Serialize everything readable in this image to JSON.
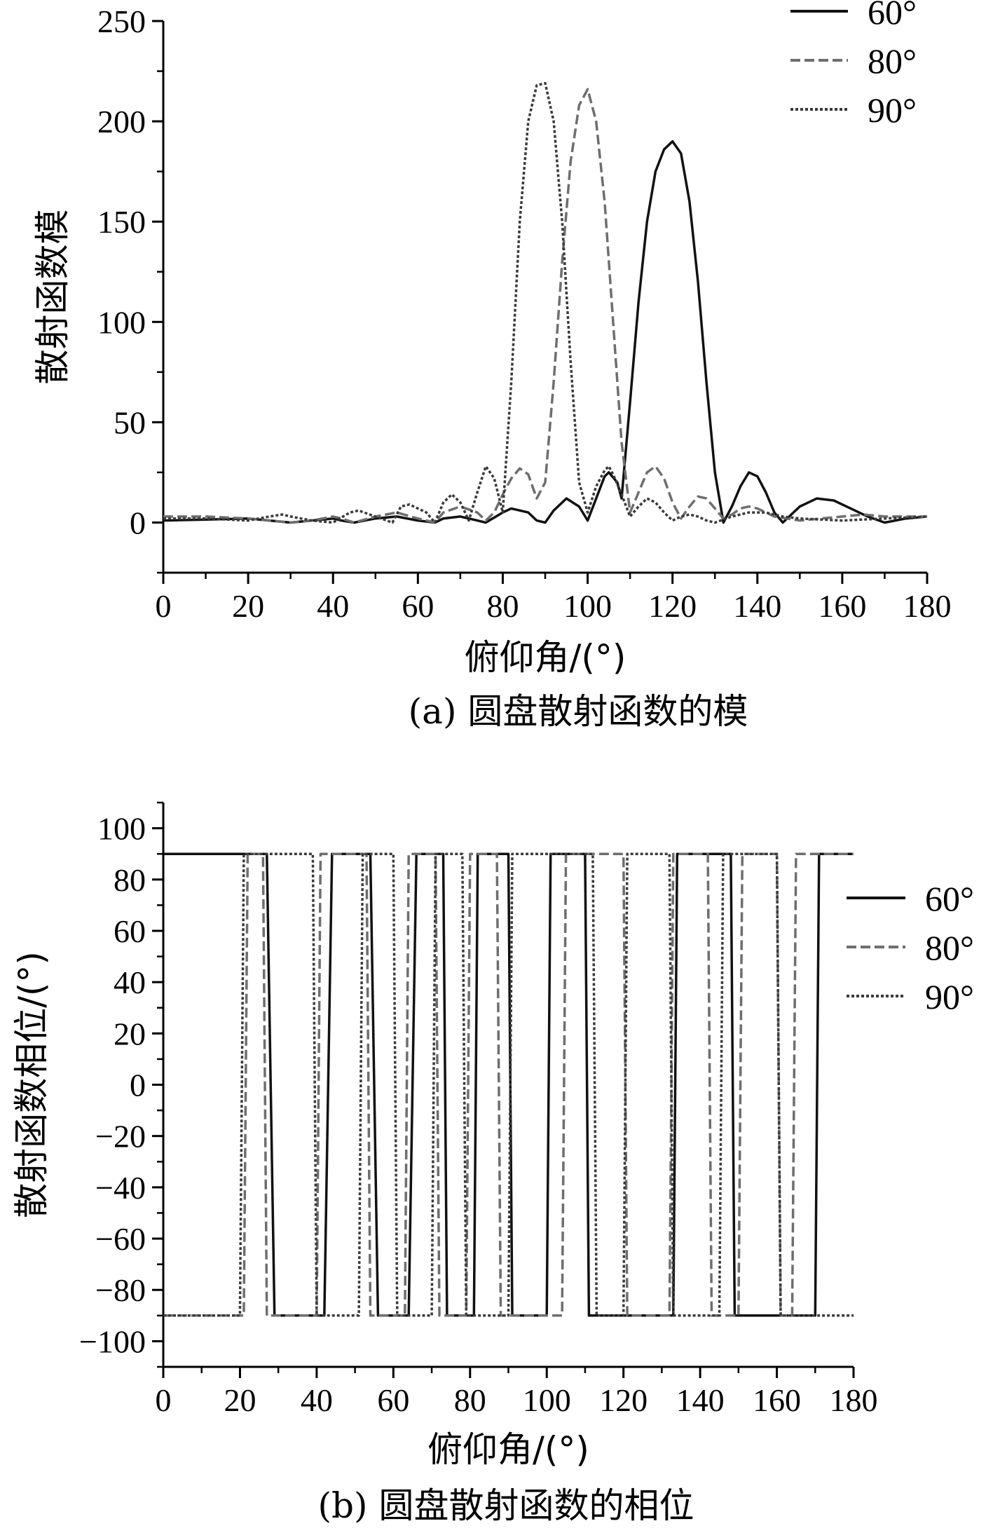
{
  "chart_data": [
    {
      "type": "line",
      "caption": "(a) 圆盘散射函数的模",
      "xlabel": "俯仰角/(°)",
      "ylabel": "散射函数模",
      "xlim": [
        0,
        180
      ],
      "ylim": [
        -25,
        250
      ],
      "xticks": [
        0,
        20,
        40,
        60,
        80,
        100,
        120,
        140,
        160,
        180
      ],
      "yticks": [
        0,
        50,
        100,
        150,
        200,
        250
      ],
      "legend_position": "top-right",
      "colors": {
        "60°": "#111111",
        "80°": "#6e6e6e",
        "90°": "#3a3a3a"
      },
      "series": [
        {
          "name": "60°",
          "style": "solid",
          "x": [
            0,
            10,
            20,
            25,
            30,
            35,
            40,
            42,
            45,
            50,
            55,
            60,
            64,
            66,
            70,
            74,
            76,
            80,
            82,
            86,
            88,
            90,
            92,
            95,
            98,
            100,
            102,
            104,
            105,
            107,
            108,
            110,
            112,
            114,
            116,
            118,
            120,
            122,
            124,
            126,
            128,
            130,
            132,
            134,
            136,
            138,
            140,
            142,
            144,
            146,
            148,
            150,
            154,
            158,
            162,
            166,
            170,
            175,
            180
          ],
          "y": [
            1,
            1.5,
            2,
            1,
            0,
            1,
            2,
            1,
            0,
            2,
            3,
            1,
            0,
            2,
            3,
            1,
            0,
            5,
            7,
            5,
            1,
            0,
            6,
            12,
            8,
            1,
            12,
            23,
            25,
            20,
            12,
            60,
            110,
            150,
            175,
            186,
            190,
            184,
            160,
            120,
            70,
            25,
            0,
            8,
            18,
            25,
            23,
            15,
            5,
            0,
            4,
            8,
            12,
            11,
            7,
            3,
            0,
            2,
            3
          ]
        },
        {
          "name": "80°",
          "style": "dashed",
          "x": [
            0,
            10,
            20,
            25,
            30,
            35,
            40,
            42,
            45,
            50,
            55,
            60,
            64,
            66,
            70,
            74,
            76,
            78,
            80,
            82,
            84,
            86,
            88,
            90,
            92,
            94,
            96,
            98,
            100,
            102,
            104,
            106,
            108,
            110,
            112,
            114,
            116,
            118,
            120,
            122,
            124,
            126,
            128,
            130,
            132,
            134,
            136,
            138,
            140,
            142,
            144,
            150,
            155,
            160,
            165,
            170,
            175,
            180
          ],
          "y": [
            3,
            3,
            2,
            1,
            0,
            1,
            3,
            2,
            0,
            3,
            5,
            2,
            0,
            5,
            8,
            5,
            1,
            5,
            14,
            22,
            27,
            24,
            12,
            20,
            70,
            130,
            180,
            208,
            216,
            200,
            160,
            100,
            40,
            5,
            15,
            25,
            28,
            22,
            10,
            2,
            8,
            13,
            12,
            7,
            2,
            4,
            7,
            8,
            7,
            5,
            3,
            1,
            2,
            3,
            4,
            3,
            3,
            3
          ]
        },
        {
          "name": "90°",
          "style": "dotted",
          "x": [
            0,
            10,
            20,
            25,
            28,
            30,
            35,
            40,
            44,
            46,
            50,
            54,
            56,
            58,
            62,
            64,
            66,
            68,
            70,
            72,
            74,
            76,
            78,
            80,
            82,
            84,
            86,
            88,
            90,
            92,
            94,
            96,
            98,
            100,
            102,
            104,
            105,
            106,
            108,
            110,
            112,
            114,
            116,
            118,
            120,
            122,
            124,
            126,
            128,
            130,
            134,
            138,
            142,
            146,
            150,
            160,
            170,
            180
          ],
          "y": [
            2,
            2,
            1,
            3,
            4,
            3,
            1,
            0,
            5,
            6,
            3,
            0,
            8,
            9,
            5,
            0,
            10,
            14,
            10,
            1,
            15,
            28,
            22,
            5,
            70,
            150,
            200,
            218,
            219,
            200,
            150,
            80,
            20,
            5,
            18,
            26,
            28,
            24,
            14,
            3,
            8,
            12,
            10,
            5,
            1,
            3,
            4,
            3,
            1,
            0,
            3,
            5,
            5,
            3,
            2,
            1,
            2,
            3
          ]
        }
      ]
    },
    {
      "type": "line",
      "caption": "(b) 圆盘散射函数的相位",
      "xlabel": "俯仰角/(°)",
      "ylabel": "散射函数相位/(°)",
      "xlim": [
        0,
        180
      ],
      "ylim": [
        -110,
        110
      ],
      "xticks": [
        0,
        20,
        40,
        60,
        80,
        100,
        120,
        140,
        160,
        180
      ],
      "yticks": [
        -100,
        -80,
        -60,
        -40,
        -20,
        0,
        20,
        40,
        60,
        80,
        100
      ],
      "legend_position": "right",
      "colors": {
        "60°": "#111111",
        "80°": "#6e6e6e",
        "90°": "#3a3a3a"
      },
      "series": [
        {
          "name": "60°",
          "style": "solid",
          "x": [
            0,
            27,
            29,
            42,
            44,
            54,
            56,
            64,
            66,
            73,
            74,
            81,
            82,
            90,
            91,
            100,
            101,
            110,
            111,
            133,
            134,
            148,
            149,
            170,
            171,
            180
          ],
          "y": [
            90,
            90,
            -90,
            -90,
            90,
            90,
            -90,
            -90,
            90,
            90,
            -90,
            -90,
            90,
            90,
            -90,
            -90,
            90,
            90,
            -90,
            -90,
            90,
            90,
            -90,
            -90,
            90,
            90
          ]
        },
        {
          "name": "80°",
          "style": "dashed",
          "x": [
            0,
            21,
            22,
            26,
            27,
            40,
            41,
            53,
            54,
            63,
            64,
            71,
            72,
            79,
            80,
            87,
            88,
            104,
            105,
            120,
            121,
            132,
            133,
            142,
            143,
            150,
            151,
            160,
            161,
            164,
            165,
            180
          ],
          "y": [
            -90,
            -90,
            90,
            90,
            -90,
            -90,
            90,
            90,
            -90,
            -90,
            90,
            90,
            -90,
            -90,
            90,
            90,
            -90,
            -90,
            90,
            90,
            -90,
            -90,
            90,
            90,
            -90,
            -90,
            90,
            90,
            -90,
            -90,
            90,
            90
          ]
        },
        {
          "name": "90°",
          "style": "dotted",
          "x": [
            0,
            20,
            21,
            39,
            40,
            51,
            52,
            60,
            61,
            70,
            71,
            78,
            79,
            90,
            91,
            112,
            113,
            120,
            121,
            132,
            133,
            145,
            146,
            160,
            161,
            180
          ],
          "y": [
            -90,
            -90,
            90,
            90,
            -90,
            -90,
            90,
            90,
            -90,
            -90,
            90,
            90,
            -90,
            -90,
            90,
            90,
            -90,
            -90,
            90,
            90,
            -90,
            -90,
            90,
            90,
            -90,
            -90
          ]
        }
      ]
    }
  ]
}
